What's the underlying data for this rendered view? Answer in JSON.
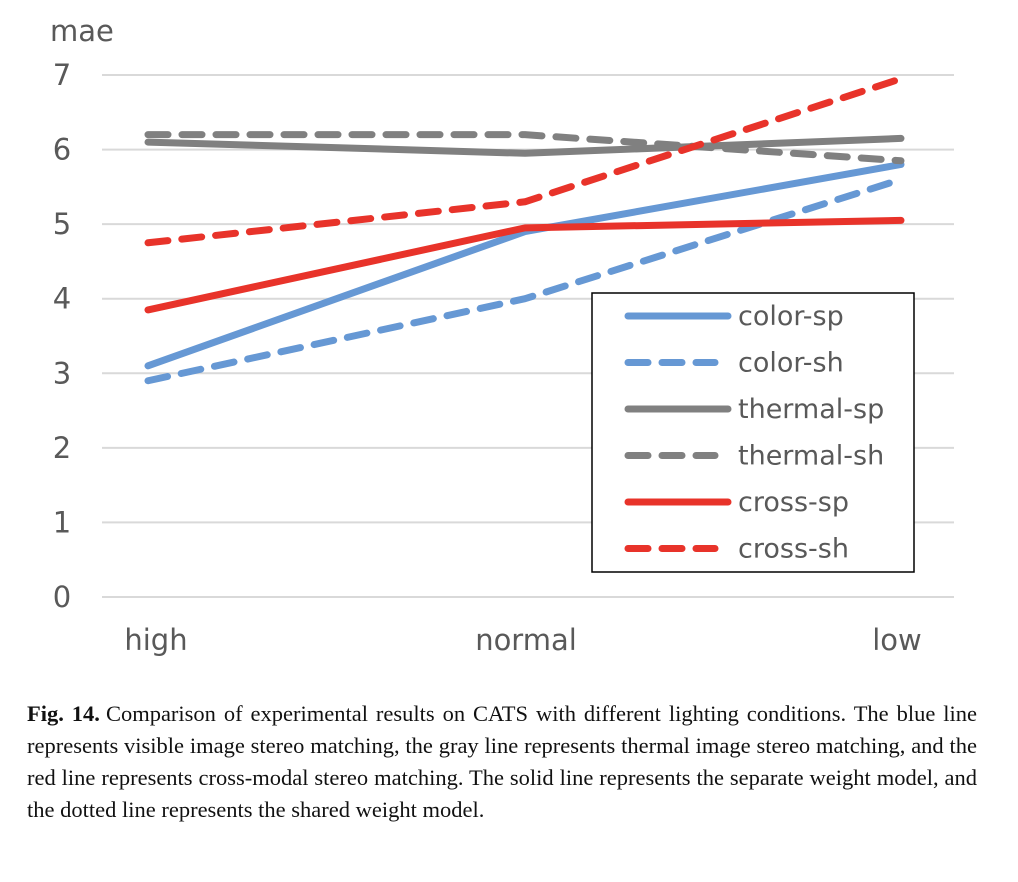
{
  "chart_data": {
    "type": "line",
    "title": "",
    "xlabel": "",
    "ylabel": "mae",
    "categories": [
      "high",
      "normal",
      "low"
    ],
    "ylim": [
      0,
      7
    ],
    "yticks": [
      0,
      1,
      2,
      3,
      4,
      5,
      6,
      7
    ],
    "grid": true,
    "legend_position": "bottom-right",
    "series": [
      {
        "name": "color-sp",
        "color": "#6698d4",
        "style": "solid",
        "values": [
          3.1,
          4.9,
          5.8
        ]
      },
      {
        "name": "color-sh",
        "color": "#6698d4",
        "style": "dashed",
        "values": [
          2.9,
          4.0,
          5.6
        ]
      },
      {
        "name": "thermal-sp",
        "color": "#808080",
        "style": "solid",
        "values": [
          6.1,
          5.95,
          6.15
        ]
      },
      {
        "name": "thermal-sh",
        "color": "#808080",
        "style": "dashed",
        "values": [
          6.2,
          6.2,
          5.85
        ]
      },
      {
        "name": "cross-sp",
        "color": "#e8332a",
        "style": "solid",
        "values": [
          3.85,
          4.95,
          5.05
        ]
      },
      {
        "name": "cross-sh",
        "color": "#e8332a",
        "style": "dashed",
        "values": [
          4.75,
          5.3,
          6.95
        ]
      }
    ]
  },
  "caption": {
    "label": "Fig. 14.",
    "text": "Comparison of experimental results on CATS with different lighting conditions. The blue line represents visible image stereo matching, the gray line represents thermal image stereo matching, and the red line represents cross-modal stereo matching. The solid line represents the separate weight model, and the dotted line represents the shared weight model."
  }
}
